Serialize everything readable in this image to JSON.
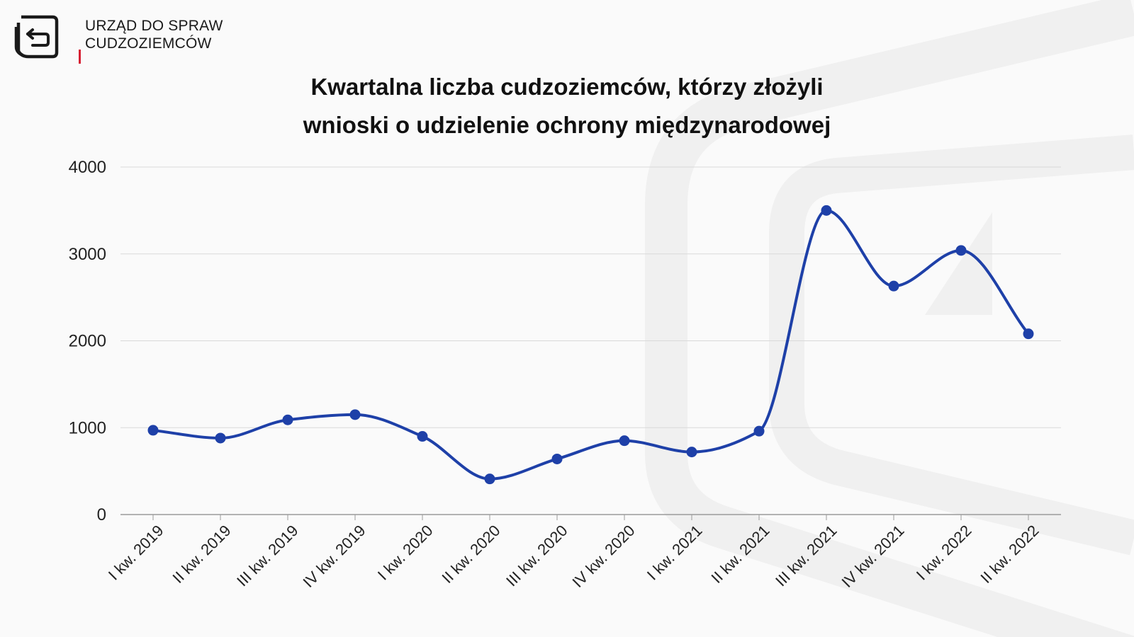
{
  "header": {
    "org_line1": "URZĄD DO SPRAW",
    "org_line2": "CUDZOZIEMCÓW"
  },
  "colors": {
    "line": "#1e40a8",
    "grid": "#d9d9d9",
    "accent": "#d61f32",
    "watermark": "#f0f0f0"
  },
  "chart_data": {
    "type": "line",
    "title_line1": "Kwartalna liczba cudzoziemców, którzy złożyli",
    "title_line2": "wnioski o udzielenie ochrony międzynarodowej",
    "categories": [
      "I kw. 2019",
      "II kw. 2019",
      "III kw. 2019",
      "IV kw. 2019",
      "I kw. 2020",
      "II kw. 2020",
      "III kw. 2020",
      "IV kw. 2020",
      "I kw. 2021",
      "II kw. 2021",
      "III kw. 2021",
      "IV kw. 2021",
      "I kw. 2022",
      "II kw. 2022"
    ],
    "series": [
      {
        "values": [
          970,
          880,
          1090,
          1150,
          900,
          410,
          640,
          850,
          720,
          960,
          3500,
          2630,
          3040,
          2080
        ]
      }
    ],
    "yticks": [
      "0",
      "1000",
      "2000",
      "3000",
      "4000"
    ],
    "ylim": [
      0,
      4000
    ],
    "smooth": true,
    "grid": true,
    "legend": "none"
  }
}
